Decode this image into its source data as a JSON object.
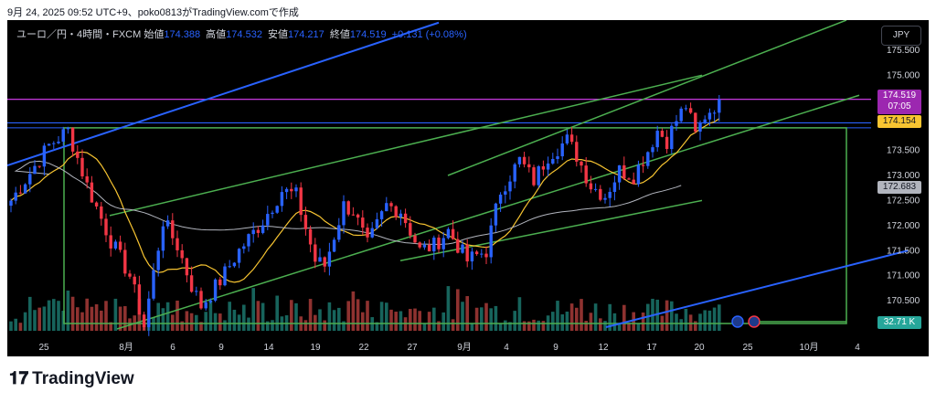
{
  "caption": "9月 24, 2025 09:52 UTC+9、poko0813がTradingView.comで作成",
  "header": {
    "symbol": "ユーロ／円・4時間・FXCM",
    "open_label": "始値",
    "open": "174.388",
    "high_label": "高値",
    "high": "174.532",
    "low_label": "安値",
    "low": "174.217",
    "close_label": "終値",
    "close": "174.519",
    "change": "+0.131 (+0.08%)"
  },
  "currency_button": "JPY",
  "price_tags": {
    "last": "174.519",
    "countdown": "07:05",
    "level": "174.154",
    "ma": "172.683",
    "volume": "32.71 K"
  },
  "brand": "TradingView",
  "colors": {
    "up": "#2962ff",
    "down": "#f23645",
    "vol_up": "#26a69a",
    "vol_down": "#ef5350",
    "ma_short": "#f7c431",
    "ma_long": "#b2b5be",
    "trendline_green": "#4caf50",
    "trendline_blue": "#2962ff",
    "hline_purple": "#e040fb",
    "hline_blue": "#2962ff",
    "background": "#000000"
  },
  "chart_data": {
    "type": "candlestick",
    "title": "ユーロ／円・4時間・FXCM",
    "ylim": [
      169.9,
      176.1
    ],
    "y_ticks": [
      175.5,
      175.0,
      174.5,
      174.0,
      173.5,
      173.0,
      172.5,
      172.0,
      171.5,
      171.0,
      170.5
    ],
    "x_tick_labels": [
      "25",
      "8月",
      "6",
      "9",
      "14",
      "19",
      "22",
      "27",
      "9月",
      "4",
      "9",
      "12",
      "17",
      "20",
      "25",
      "10月",
      "4"
    ],
    "path": [
      [
        0,
        172.5
      ],
      [
        8,
        173.6
      ],
      [
        12,
        173.9
      ],
      [
        16,
        172.8
      ],
      [
        21,
        171.7
      ],
      [
        25,
        171.0
      ],
      [
        28,
        170.0
      ],
      [
        32,
        172.1
      ],
      [
        35,
        171.6
      ],
      [
        38,
        170.8
      ],
      [
        40,
        170.4
      ],
      [
        44,
        170.9
      ],
      [
        48,
        171.5
      ],
      [
        53,
        172.1
      ],
      [
        57,
        172.7
      ],
      [
        60,
        172.6
      ],
      [
        64,
        171.3
      ],
      [
        66,
        171.2
      ],
      [
        70,
        172.4
      ],
      [
        72,
        172.3
      ],
      [
        75,
        171.6
      ],
      [
        79,
        172.4
      ],
      [
        82,
        172.3
      ],
      [
        86,
        171.5
      ],
      [
        89,
        171.6
      ],
      [
        92,
        171.9
      ],
      [
        96,
        171.3
      ],
      [
        100,
        171.5
      ],
      [
        103,
        172.7
      ],
      [
        107,
        173.3
      ],
      [
        110,
        172.9
      ],
      [
        113,
        173.4
      ],
      [
        117,
        173.7
      ],
      [
        119,
        173.4
      ],
      [
        122,
        172.8
      ],
      [
        125,
        172.6
      ],
      [
        128,
        173.1
      ],
      [
        131,
        173.0
      ],
      [
        134,
        173.5
      ],
      [
        136,
        173.9
      ],
      [
        138,
        173.7
      ],
      [
        140,
        174.1
      ],
      [
        142,
        174.4
      ],
      [
        144,
        173.8
      ],
      [
        146,
        174.2
      ],
      [
        149,
        174.5
      ]
    ],
    "horizontal_lines": [
      174.519,
      174.154,
      174.05
    ],
    "ma_values": {
      "short": 174.154,
      "long": 172.683
    },
    "volume_last": "32.71 K"
  }
}
